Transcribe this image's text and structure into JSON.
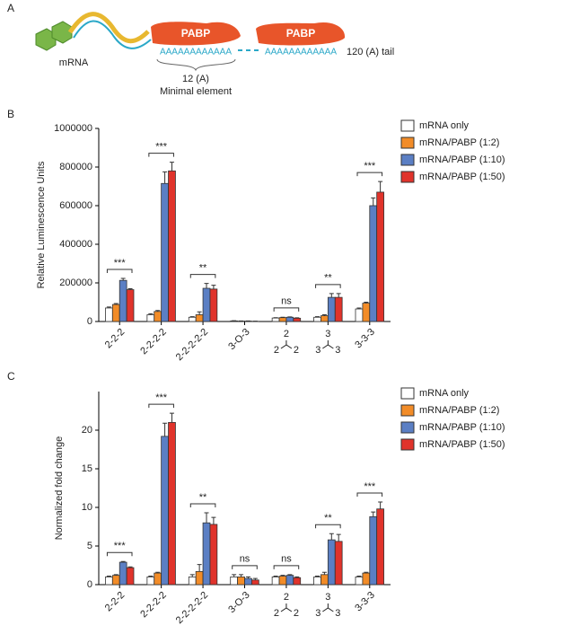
{
  "diagram": {
    "panel": "A",
    "mrna": "mRNA",
    "pabp_1": "PABP",
    "pabp_2": "PABP",
    "tail_1": "AAAAAAAAAAAA",
    "tail_2": "AAAAAAAAAAAA",
    "tail_label": "120 (A) tail",
    "minimal_count": "12 (A)",
    "minimal_label": "Minimal element"
  },
  "chart_data": [
    {
      "type": "bar",
      "panel": "B",
      "y_label": "Relative Luminescence Units",
      "categories": [
        "2-2-2",
        "2-2-2-2",
        "2-2-2-2-2",
        "3-O-3",
        [
          "2",
          "2",
          "2"
        ],
        [
          "3",
          "3",
          "3"
        ],
        "3-3-3"
      ],
      "series": [
        {
          "name": "mRNA only",
          "color": "#ffffff",
          "values": [
            70000,
            35000,
            22000,
            3000,
            18000,
            22000,
            65000
          ],
          "errors": [
            5000,
            5000,
            3000,
            1000,
            2000,
            3000,
            5000
          ]
        },
        {
          "name": "mRNA/PABP (1:2)",
          "color": "#f28c28",
          "values": [
            88000,
            52000,
            35000,
            2000,
            20000,
            30000,
            95000
          ],
          "errors": [
            5000,
            5000,
            15000,
            1000,
            2000,
            5000,
            5000
          ]
        },
        {
          "name": "mRNA/PABP (1:10)",
          "color": "#5b7fc4",
          "values": [
            213000,
            715000,
            172000,
            2000,
            22000,
            125000,
            600000
          ],
          "errors": [
            10000,
            60000,
            25000,
            1000,
            2000,
            20000,
            40000
          ]
        },
        {
          "name": "mRNA/PABP (1:50)",
          "color": "#e0332b",
          "values": [
            165000,
            780000,
            168000,
            1000,
            17000,
            125000,
            670000
          ],
          "errors": [
            5000,
            45000,
            20000,
            1000,
            2000,
            20000,
            55000
          ]
        }
      ],
      "annotations": [
        "***",
        "***",
        "**",
        null,
        "ns",
        "**",
        "***"
      ],
      "ylim": [
        0,
        1000000
      ],
      "yticks": [
        0,
        200000,
        400000,
        600000,
        800000,
        1000000
      ]
    },
    {
      "type": "bar",
      "panel": "C",
      "y_label": "Normalized fold change",
      "categories": [
        "2-2-2",
        "2-2-2-2",
        "2-2-2-2-2",
        "3-O-3",
        [
          "2",
          "2",
          "2"
        ],
        [
          "3",
          "3",
          "3"
        ],
        "3-3-3"
      ],
      "series": [
        {
          "name": "mRNA only",
          "color": "#ffffff",
          "values": [
            1,
            1,
            1,
            1,
            1,
            1,
            1
          ],
          "errors": [
            0.1,
            0.1,
            0.3,
            0.3,
            0.1,
            0.1,
            0.1
          ]
        },
        {
          "name": "mRNA/PABP (1:2)",
          "color": "#f28c28",
          "values": [
            1.2,
            1.5,
            1.7,
            1,
            1.1,
            1.3,
            1.5
          ],
          "errors": [
            0.1,
            0.1,
            0.9,
            0.3,
            0.1,
            0.3,
            0.1
          ]
        },
        {
          "name": "mRNA/PABP (1:10)",
          "color": "#5b7fc4",
          "values": [
            2.9,
            19.2,
            8,
            0.8,
            1.2,
            5.8,
            8.8
          ],
          "errors": [
            0.1,
            1.7,
            1.3,
            0.2,
            0.1,
            0.8,
            0.6
          ]
        },
        {
          "name": "mRNA/PABP (1:50)",
          "color": "#e0332b",
          "values": [
            2.2,
            21,
            7.8,
            0.6,
            0.9,
            5.6,
            9.8
          ],
          "errors": [
            0.1,
            1.2,
            0.9,
            0.2,
            0.1,
            0.9,
            0.9
          ]
        }
      ],
      "annotations": [
        "***",
        "***",
        "**",
        "ns",
        "ns",
        "**",
        "***"
      ],
      "ylim": [
        0,
        25
      ],
      "yticks": [
        0,
        5,
        10,
        15,
        20
      ]
    }
  ]
}
